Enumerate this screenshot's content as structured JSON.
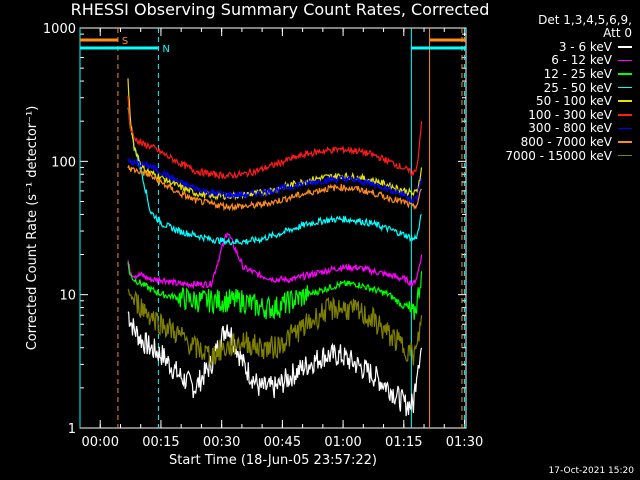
{
  "title": "RHESSI Observing Summary Count Rates, Corrected",
  "timestamp": "17-Oct-2021 15:20",
  "legend_header": [
    "Det 1,3,4,5,6,9,",
    "Att 0"
  ],
  "chart_data": {
    "type": "line",
    "xlabel": "Start Time (18-Jun-05 23:57:22)",
    "ylabel": "Corrected Count Rate (s⁻¹ detector⁻¹)",
    "yscale": "log",
    "ylim": [
      1,
      1000
    ],
    "xlim_minutes": [
      -2.37,
      93.0
    ],
    "x_ticks": [
      {
        "label": "00:00",
        "t": 2.63
      },
      {
        "label": "00:15",
        "t": 17.63
      },
      {
        "label": "00:30",
        "t": 32.63
      },
      {
        "label": "00:45",
        "t": 47.63
      },
      {
        "label": "01:00",
        "t": 62.63
      },
      {
        "label": "01:15",
        "t": 77.63
      },
      {
        "label": "01:30",
        "t": 92.63
      }
    ],
    "y_ticks": [
      {
        "label": "1",
        "v": 1
      },
      {
        "label": "10",
        "v": 10
      },
      {
        "label": "100",
        "v": 100
      },
      {
        "label": "1000",
        "v": 1000
      }
    ],
    "x_minutes": [
      9.5,
      10,
      11,
      13,
      15,
      18,
      22,
      26,
      30,
      34,
      38,
      42,
      46,
      50,
      54,
      58,
      62,
      66,
      70,
      74,
      78,
      80,
      81,
      82
    ],
    "series": [
      {
        "name": "3 - 6 keV",
        "color": "#ffffff",
        "values": [
          7.5,
          6.5,
          5.5,
          4.5,
          4,
          3.5,
          2.5,
          2,
          3,
          6,
          3,
          2,
          2,
          2.5,
          3,
          3.5,
          3.5,
          3,
          2.5,
          2,
          1.5,
          1.5,
          3,
          4
        ]
      },
      {
        "name": "6 - 12 keV",
        "color": "#ff00ff",
        "values": [
          18,
          15,
          14,
          14,
          13,
          13,
          12,
          12,
          12,
          30,
          16,
          14,
          13,
          13,
          14,
          15,
          16,
          16,
          15,
          14,
          13,
          12,
          14,
          20
        ]
      },
      {
        "name": "12 - 25 keV",
        "color": "#00ff00",
        "values": [
          17,
          14,
          13,
          12,
          11,
          10,
          9.5,
          9,
          9,
          9,
          9,
          8,
          8,
          9,
          10,
          11,
          12,
          12,
          11,
          10,
          8,
          7,
          9,
          15
        ]
      },
      {
        "name": "25 - 50 keV",
        "color": "#00ffff",
        "values": [
          250,
          190,
          130,
          80,
          42,
          34,
          30,
          28,
          26,
          25,
          25,
          26,
          28,
          31,
          34,
          36,
          37,
          36,
          34,
          31,
          28,
          26,
          28,
          40
        ]
      },
      {
        "name": "50 - 100 keV",
        "color": "#e5e500",
        "values": [
          420,
          210,
          130,
          90,
          82,
          75,
          65,
          58,
          55,
          55,
          56,
          58,
          62,
          67,
          72,
          76,
          78,
          76,
          72,
          66,
          60,
          57,
          60,
          90
        ]
      },
      {
        "name": "100 - 300 keV",
        "color": "#ff1a1a",
        "values": [
          300,
          180,
          150,
          135,
          130,
          115,
          98,
          85,
          80,
          78,
          80,
          86,
          95,
          105,
          114,
          120,
          123,
          120,
          112,
          100,
          88,
          80,
          95,
          200
        ]
      },
      {
        "name": "300 - 800 keV",
        "color": "#0000ff",
        "values": [
          100,
          99,
          97,
          95,
          92,
          82,
          70,
          63,
          58,
          56,
          56,
          58,
          61,
          65,
          69,
          72,
          74,
          72,
          68,
          62,
          56,
          50,
          54,
          75
        ]
      },
      {
        "name": "800 - 7000 keV",
        "color": "#ff8c1a",
        "values": [
          90,
          88,
          86,
          83,
          78,
          68,
          58,
          51,
          48,
          46,
          46,
          47,
          50,
          54,
          58,
          62,
          64,
          62,
          58,
          53,
          49,
          45,
          48,
          62
        ]
      },
      {
        "name": "7000 - 15000 keV",
        "color": "#808000",
        "values": [
          11,
          10,
          9,
          8,
          7,
          6,
          5,
          4,
          3.5,
          4,
          4.5,
          4,
          4,
          5,
          6,
          7.5,
          8,
          7.5,
          6.5,
          5,
          4,
          3.5,
          4,
          7
        ]
      }
    ],
    "markers": [
      {
        "label": "S",
        "color": "#ff8c1a",
        "t_start": -2.37,
        "t_end": 7.0,
        "row": 0
      },
      {
        "label": "N",
        "color": "#00ffff",
        "t_start": -2.37,
        "t_end": 17.0,
        "row": 1
      },
      {
        "label": "",
        "color": "#ff8c1a",
        "t_start": 84.0,
        "t_end": 93.0,
        "row": 0
      },
      {
        "label": "",
        "color": "#00ffff",
        "t_start": 79.5,
        "t_end": 93.0,
        "row": 1
      }
    ],
    "vlines": [
      {
        "t": -2.37,
        "color": "#00ffff",
        "dashed": false
      },
      {
        "t": 7.0,
        "color": "#ff8c1a",
        "dashed": true
      },
      {
        "t": 17.0,
        "color": "#00ffff",
        "dashed": true
      },
      {
        "t": 79.5,
        "color": "#00ffff",
        "dashed": false
      },
      {
        "t": 84.0,
        "color": "#ff8c1a",
        "dashed": false
      },
      {
        "t": 92.0,
        "color": "#ff8c1a",
        "dashed": true
      },
      {
        "t": 92.6,
        "color": "#00ffff",
        "dashed": true
      }
    ]
  }
}
